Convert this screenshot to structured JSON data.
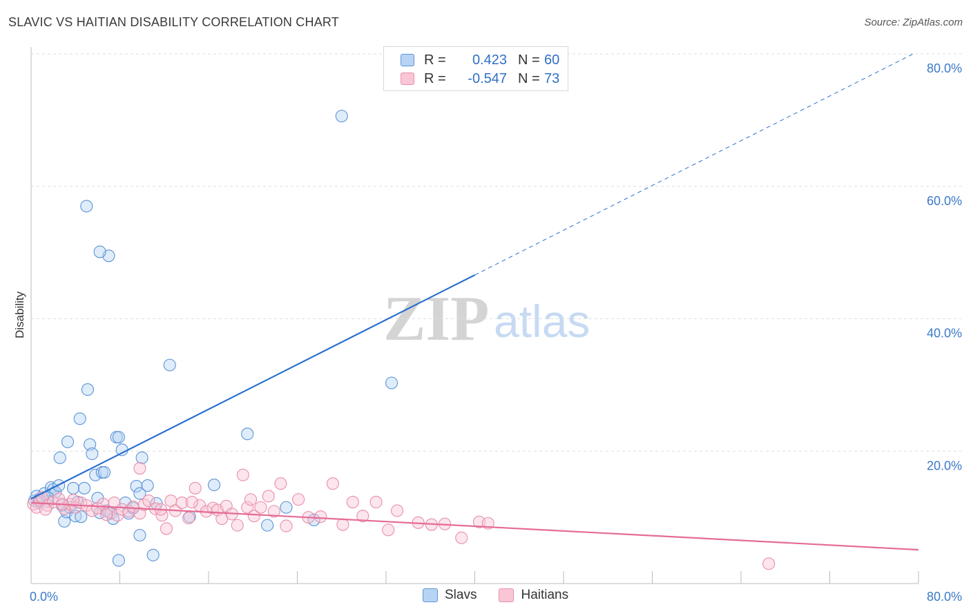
{
  "title": "SLAVIC VS HAITIAN DISABILITY CORRELATION CHART",
  "source": "Source: ZipAtlas.com",
  "watermark": {
    "zip": "ZIP",
    "atlas": "atlas"
  },
  "legend": {
    "rows": [
      {
        "series": "Slavs",
        "r_label": "R =",
        "r_value": "0.423",
        "n_label": "N =",
        "n_value": "60",
        "fill": "#b8d4f4",
        "stroke": "#5b93d6"
      },
      {
        "series": "Haitians",
        "r_label": "R =",
        "r_value": "-0.547",
        "n_label": "N =",
        "n_value": "73",
        "fill": "#f9c6d5",
        "stroke": "#e88fab"
      }
    ]
  },
  "bottom_legend": [
    {
      "label": "Slavs",
      "fill": "#b8d4f4",
      "stroke": "#5b93d6"
    },
    {
      "label": "Haitians",
      "fill": "#f9c6d5",
      "stroke": "#e88fab"
    }
  ],
  "colors": {
    "blue_line": "#2a6fce",
    "pink_line": "#e56b95",
    "tick": "#3a78c9",
    "grid": "#dedede"
  },
  "chart_data": {
    "type": "scatter",
    "title": "SLAVIC VS HAITIAN DISABILITY CORRELATION CHART",
    "xlabel": "",
    "ylabel": "Disability",
    "xlim": [
      0,
      80
    ],
    "ylim": [
      0,
      80
    ],
    "x_tick_labels": [
      "0.0%",
      "80.0%"
    ],
    "y_ticks": [
      20,
      40,
      60,
      80
    ],
    "y_tick_labels": [
      "20.0%",
      "40.0%",
      "60.0%",
      "80.0%"
    ],
    "series": [
      {
        "name": "Slavs",
        "color": "#5b93d6",
        "trend": {
          "x0": 0,
          "y0": 12.8,
          "x1": 40,
          "y1": 46.6,
          "dashed_to_x": 79.5
        },
        "points": [
          [
            0.3,
            12.5
          ],
          [
            0.5,
            13.2
          ],
          [
            0.8,
            12.8
          ],
          [
            1.2,
            13.6
          ],
          [
            1.5,
            12.4
          ],
          [
            1.8,
            14.5
          ],
          [
            2.0,
            14.2
          ],
          [
            2.2,
            13.8
          ],
          [
            2.5,
            14.8
          ],
          [
            2.8,
            11.8
          ],
          [
            3.0,
            9.4
          ],
          [
            3.2,
            10.8
          ],
          [
            3.5,
            11.5
          ],
          [
            3.8,
            14.4
          ],
          [
            4.0,
            10.2
          ],
          [
            4.2,
            12.3
          ],
          [
            4.5,
            10.1
          ],
          [
            4.8,
            14.4
          ],
          [
            5.1,
            29.3
          ],
          [
            5.3,
            21.0
          ],
          [
            5.5,
            19.6
          ],
          [
            5.8,
            16.4
          ],
          [
            6.0,
            12.9
          ],
          [
            6.2,
            10.7
          ],
          [
            6.4,
            16.8
          ],
          [
            6.6,
            16.8
          ],
          [
            6.8,
            11.0
          ],
          [
            7.0,
            49.5
          ],
          [
            7.2,
            10.6
          ],
          [
            7.4,
            9.8
          ],
          [
            7.7,
            22.1
          ],
          [
            7.9,
            22.1
          ],
          [
            8.2,
            20.2
          ],
          [
            8.5,
            12.2
          ],
          [
            8.8,
            10.6
          ],
          [
            9.2,
            11.4
          ],
          [
            9.5,
            14.7
          ],
          [
            9.8,
            13.6
          ],
          [
            10.0,
            19.0
          ],
          [
            10.5,
            14.8
          ],
          [
            11.0,
            4.3
          ],
          [
            11.3,
            12.1
          ],
          [
            12.5,
            33.0
          ],
          [
            14.3,
            10.1
          ],
          [
            16.5,
            14.9
          ],
          [
            19.5,
            22.6
          ],
          [
            21.3,
            8.8
          ],
          [
            23.0,
            11.5
          ],
          [
            25.5,
            9.6
          ],
          [
            28.0,
            70.6
          ],
          [
            32.5,
            30.3
          ],
          [
            5.0,
            57.0
          ],
          [
            6.2,
            50.1
          ],
          [
            1.5,
            13.0
          ],
          [
            2.6,
            19.0
          ],
          [
            0.7,
            12.2
          ],
          [
            3.3,
            21.4
          ],
          [
            9.8,
            7.3
          ],
          [
            7.9,
            3.5
          ],
          [
            4.4,
            24.9
          ]
        ]
      },
      {
        "name": "Haitians",
        "color": "#e88fab",
        "trend": {
          "x0": 0,
          "y0": 12.2,
          "x1": 80,
          "y1": 5.1
        },
        "points": [
          [
            0.2,
            12.0
          ],
          [
            0.5,
            11.5
          ],
          [
            0.8,
            12.5
          ],
          [
            1.0,
            13.0
          ],
          [
            1.5,
            11.8
          ],
          [
            2.0,
            12.3
          ],
          [
            2.5,
            12.8
          ],
          [
            3.0,
            11.3
          ],
          [
            3.5,
            12.0
          ],
          [
            4.0,
            11.5
          ],
          [
            4.5,
            12.2
          ],
          [
            5.0,
            11.8
          ],
          [
            5.5,
            11.0
          ],
          [
            6.0,
            11.4
          ],
          [
            6.5,
            12.0
          ],
          [
            7.0,
            10.8
          ],
          [
            7.5,
            12.2
          ],
          [
            7.8,
            10.3
          ],
          [
            8.2,
            11.2
          ],
          [
            8.8,
            10.9
          ],
          [
            9.2,
            11.6
          ],
          [
            9.8,
            10.6
          ],
          [
            10.2,
            11.9
          ],
          [
            10.6,
            12.5
          ],
          [
            11.2,
            11.3
          ],
          [
            11.8,
            10.3
          ],
          [
            12.2,
            8.3
          ],
          [
            12.6,
            12.5
          ],
          [
            13.0,
            11.0
          ],
          [
            13.6,
            12.2
          ],
          [
            14.2,
            9.9
          ],
          [
            14.8,
            14.4
          ],
          [
            15.2,
            11.8
          ],
          [
            15.8,
            10.9
          ],
          [
            16.4,
            11.4
          ],
          [
            16.8,
            11.1
          ],
          [
            17.2,
            9.8
          ],
          [
            17.6,
            11.7
          ],
          [
            18.1,
            10.5
          ],
          [
            18.6,
            8.8
          ],
          [
            19.1,
            16.4
          ],
          [
            19.5,
            11.5
          ],
          [
            20.1,
            10.2
          ],
          [
            20.7,
            11.5
          ],
          [
            21.4,
            13.2
          ],
          [
            21.9,
            10.9
          ],
          [
            22.5,
            15.1
          ],
          [
            23.0,
            8.7
          ],
          [
            24.1,
            12.7
          ],
          [
            25.0,
            10.0
          ],
          [
            26.1,
            10.1
          ],
          [
            27.2,
            15.1
          ],
          [
            28.1,
            8.9
          ],
          [
            29.0,
            12.3
          ],
          [
            29.9,
            10.2
          ],
          [
            31.1,
            12.3
          ],
          [
            32.2,
            8.1
          ],
          [
            33.0,
            11.0
          ],
          [
            34.9,
            9.2
          ],
          [
            36.1,
            8.9
          ],
          [
            37.3,
            9.0
          ],
          [
            38.8,
            6.9
          ],
          [
            40.4,
            9.3
          ],
          [
            41.2,
            9.1
          ],
          [
            66.5,
            3.0
          ],
          [
            9.8,
            17.4
          ],
          [
            14.5,
            12.3
          ],
          [
            3.8,
            12.6
          ],
          [
            1.3,
            11.2
          ],
          [
            6.8,
            10.4
          ],
          [
            19.8,
            12.7
          ],
          [
            11.7,
            11.2
          ],
          [
            2.8,
            12.0
          ]
        ]
      }
    ]
  }
}
